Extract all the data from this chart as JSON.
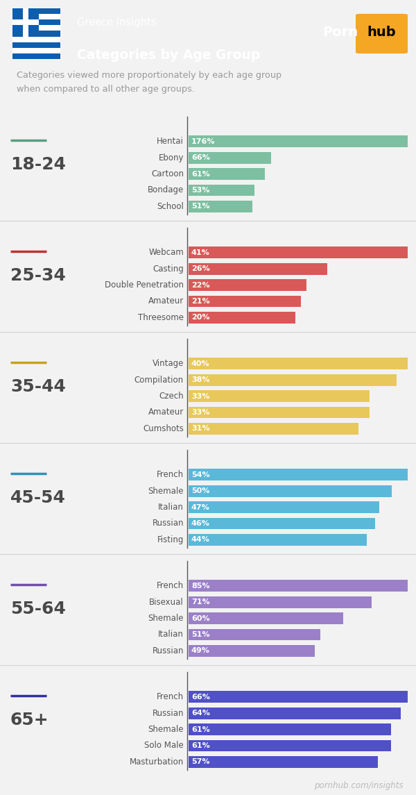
{
  "header_bg": "#3a3a3a",
  "chart_bg_top": "#e8e8e8",
  "chart_bg": "#f2f2f2",
  "subtitle_text": "Categories viewed more proportionately by each age group\nwhen compared to all other age groups.",
  "subtitle_color": "#999999",
  "footer_text": "pornhub.com/insights",
  "footer_color": "#bbbbbb",
  "groups": [
    {
      "age": "18-24",
      "color": "#7dbfa0",
      "line_color": "#5a9e7e",
      "categories": [
        "Hentai",
        "Ebony",
        "Cartoon",
        "Bondage",
        "School"
      ],
      "values": [
        176,
        66,
        61,
        53,
        51
      ]
    },
    {
      "age": "25-34",
      "color": "#d95858",
      "line_color": "#c43030",
      "categories": [
        "Webcam",
        "Casting",
        "Double Penetration",
        "Amateur",
        "Threesome"
      ],
      "values": [
        41,
        26,
        22,
        21,
        20
      ]
    },
    {
      "age": "35-44",
      "color": "#e8c85a",
      "line_color": "#c8a020",
      "categories": [
        "Vintage",
        "Compilation",
        "Czech",
        "Amateur",
        "Cumshots"
      ],
      "values": [
        40,
        38,
        33,
        33,
        31
      ]
    },
    {
      "age": "45-54",
      "color": "#5ab8d8",
      "line_color": "#3090b8",
      "categories": [
        "French",
        "Shemale",
        "Italian",
        "Russian",
        "Fisting"
      ],
      "values": [
        54,
        50,
        47,
        46,
        44
      ]
    },
    {
      "age": "55-64",
      "color": "#9b80c8",
      "line_color": "#7050a8",
      "categories": [
        "French",
        "Bisexual",
        "Shemale",
        "Italian",
        "Russian"
      ],
      "values": [
        85,
        71,
        60,
        51,
        49
      ]
    },
    {
      "age": "65+",
      "color": "#5050c8",
      "line_color": "#3030a0",
      "categories": [
        "French",
        "Russian",
        "Shemale",
        "Solo Male",
        "Masturbation"
      ],
      "values": [
        66,
        64,
        61,
        61,
        57
      ]
    }
  ]
}
